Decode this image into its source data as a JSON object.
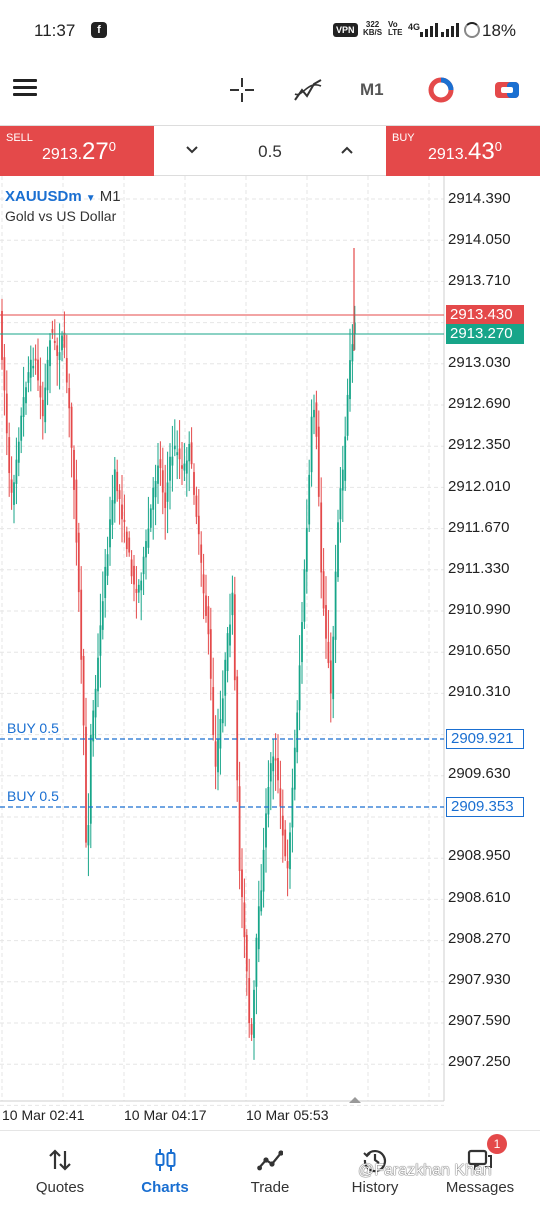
{
  "status_bar": {
    "time": "11:37",
    "vpn": "VPN",
    "speed_value": "322",
    "speed_unit": "KB/S",
    "volte_top": "Vo",
    "volte_bottom": "LTE",
    "network": "4G",
    "battery": "18%"
  },
  "toolbar": {
    "timeframe": "M1"
  },
  "trade_strip": {
    "sell": {
      "label": "SELL",
      "price_major": "2913.",
      "price_big": "27",
      "price_sup": "0"
    },
    "buy": {
      "label": "BUY",
      "price_major": "2913.",
      "price_big": "43",
      "price_sup": "0"
    },
    "volume": "0.5"
  },
  "chart": {
    "symbol": "XAUUSDm",
    "timeframe": "M1",
    "description": "Gold vs US Dollar",
    "price_scale": [
      "2914.390",
      "2914.050",
      "2913.710",
      "2913.030",
      "2912.690",
      "2912.350",
      "2912.010",
      "2911.670",
      "2911.330",
      "2910.990",
      "2910.650",
      "2910.310",
      "2909.630",
      "2908.950",
      "2908.610",
      "2908.270",
      "2907.930",
      "2907.590",
      "2907.250"
    ],
    "time_labels": [
      "10 Mar 02:41",
      "10 Mar 04:17",
      "10 Mar 05:53"
    ],
    "ask_tag": "2913.430",
    "bid_tag": "2913.270",
    "orders": [
      {
        "label": "BUY 0.5",
        "price": "2909.921"
      },
      {
        "label": "BUY 0.5",
        "price": "2909.353"
      }
    ],
    "colors": {
      "bull": "#17a589",
      "bear": "#e4494a",
      "order": "#1a6fd1"
    }
  },
  "bottom_nav": {
    "items": [
      {
        "label": "Quotes",
        "icon": "quotes-arrows-icon"
      },
      {
        "label": "Charts",
        "icon": "charts-candles-icon"
      },
      {
        "label": "Trade",
        "icon": "trade-line-icon"
      },
      {
        "label": "History",
        "icon": "history-clock-icon"
      },
      {
        "label": "Messages",
        "icon": "messages-chat-icon"
      }
    ],
    "messages_badge": "1",
    "watermark": "@Farazkhan Khan"
  }
}
